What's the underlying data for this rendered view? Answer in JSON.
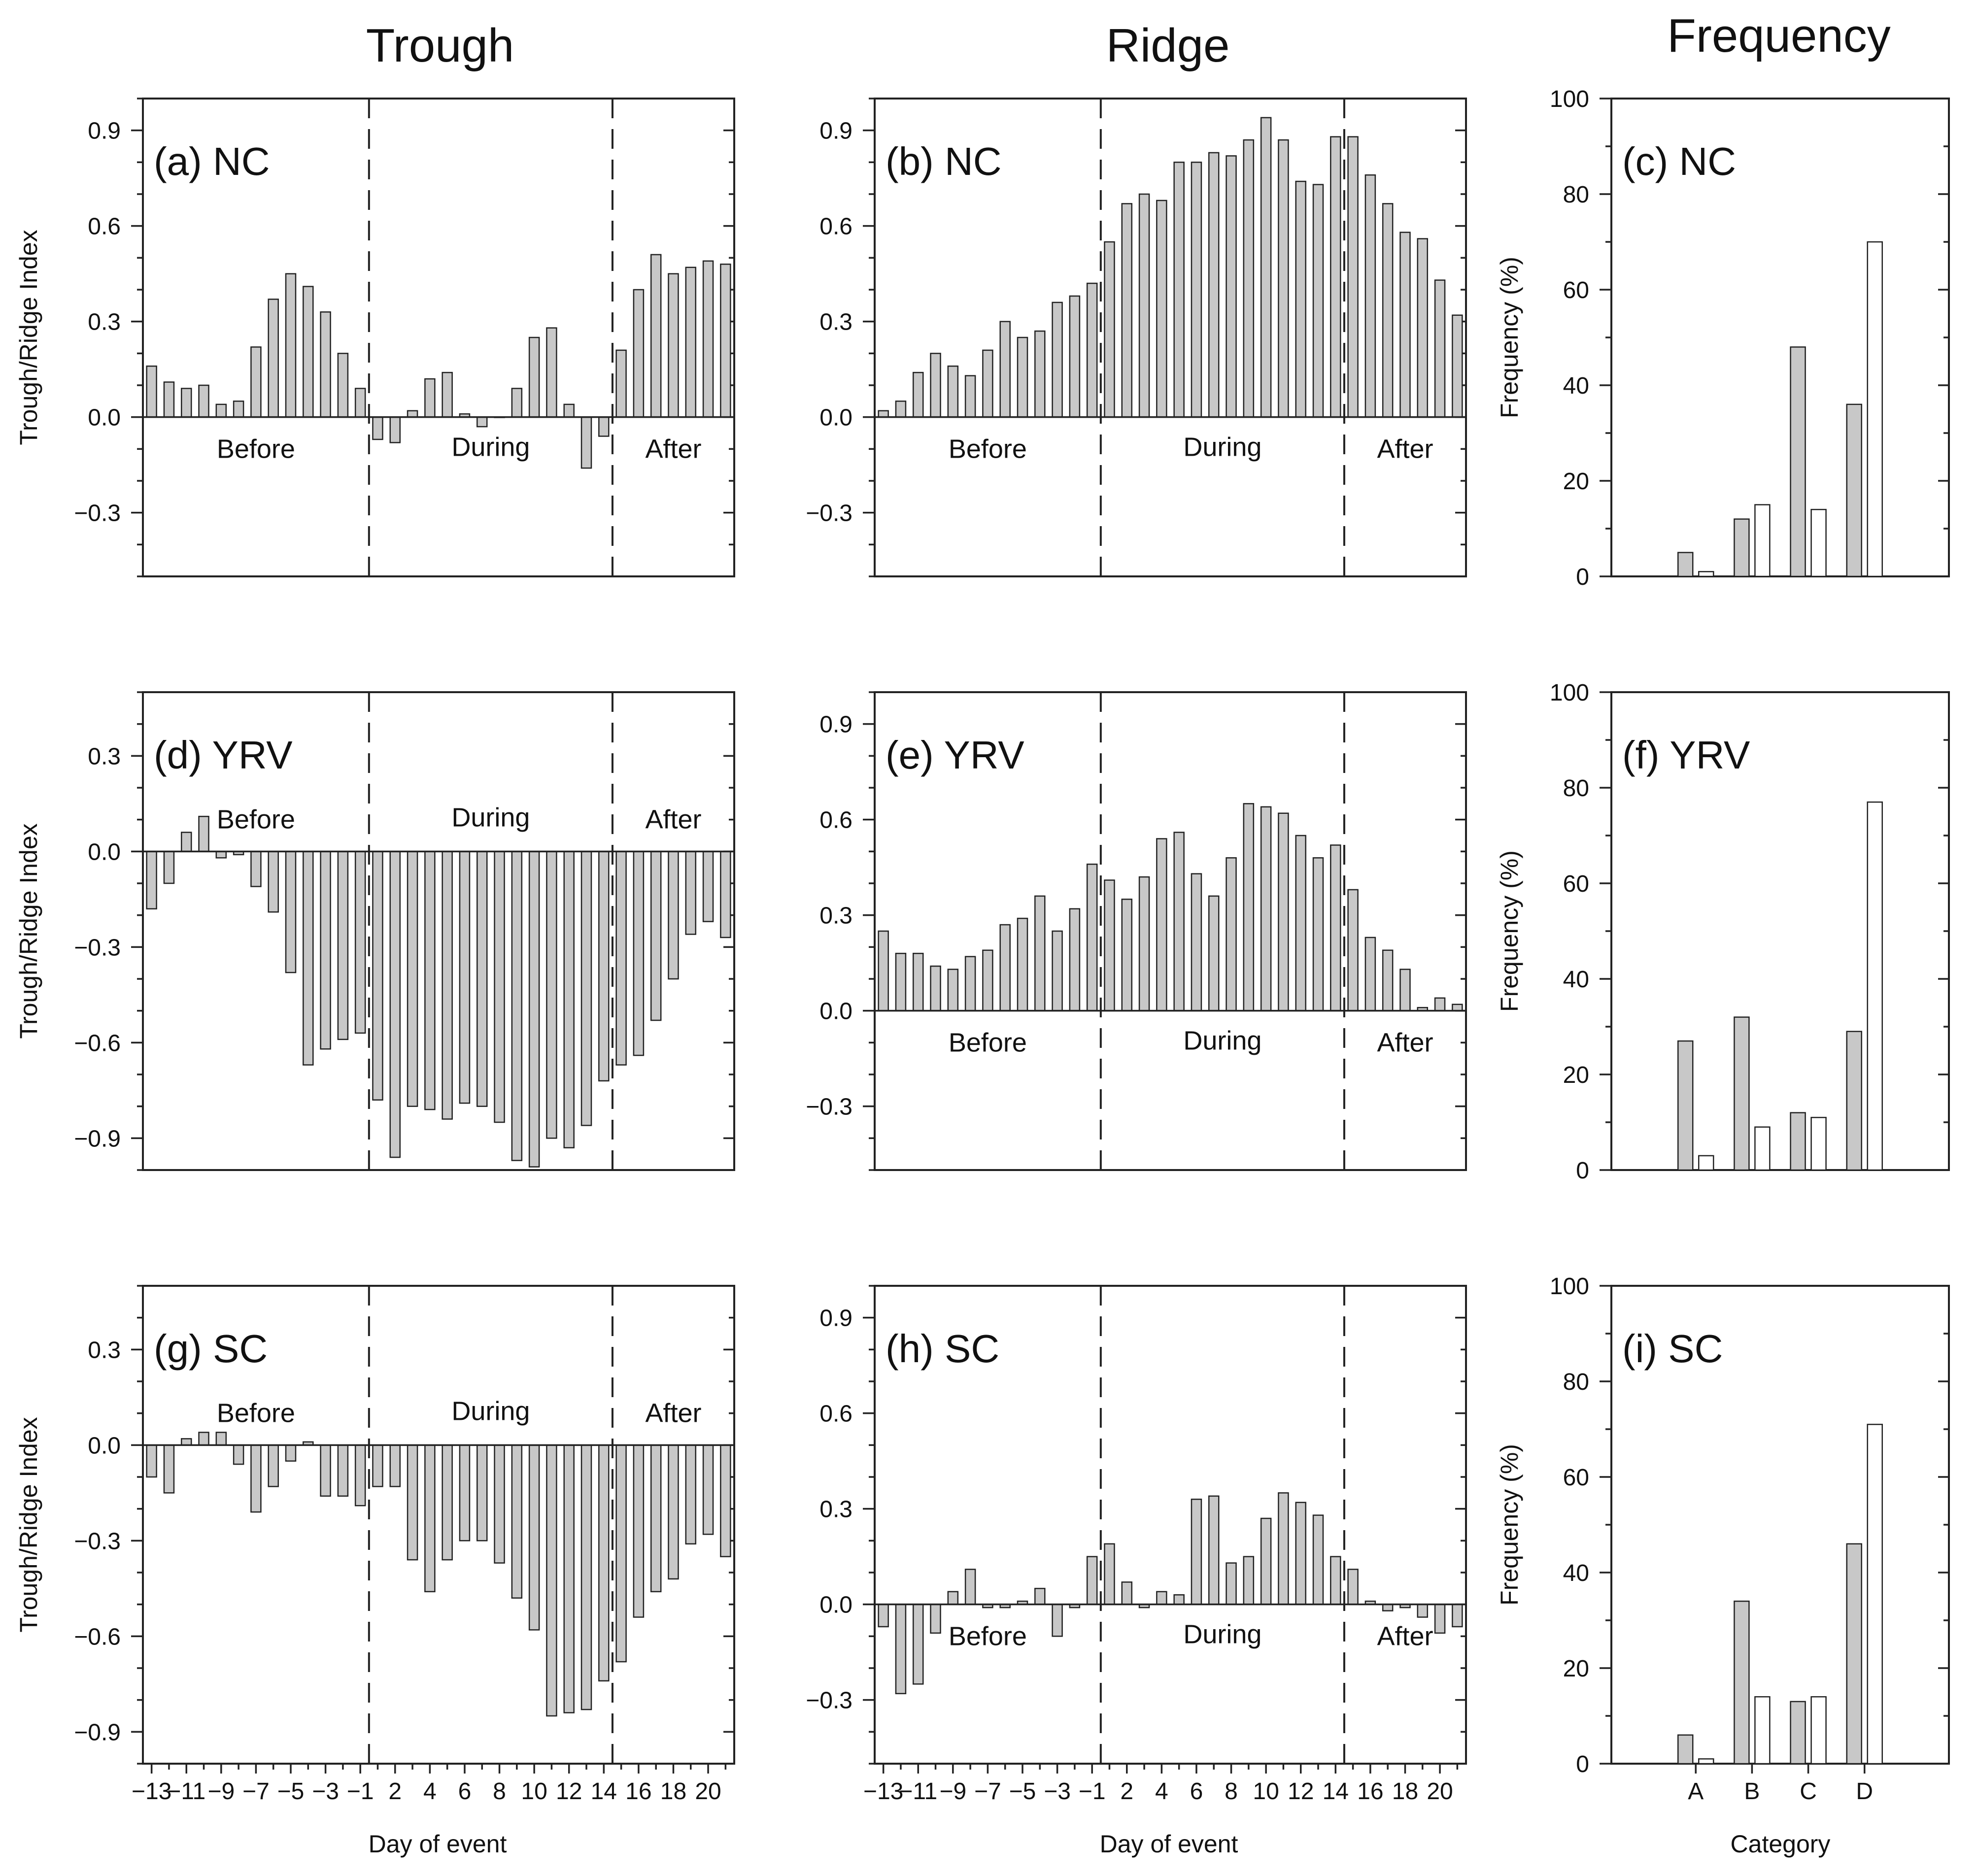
{
  "column_titles": [
    "Trough",
    "Ridge",
    "Frequency"
  ],
  "y_axis_label_index": "Trough/Ridge Index",
  "y_axis_label_freq": "Frequency (%)",
  "x_axis_label_day": "Day of event",
  "x_axis_label_cat": "Category",
  "phase_labels": [
    "Before",
    "During",
    "After"
  ],
  "chart_data": [
    {
      "id": "a",
      "type": "bar",
      "title": "(a) NC",
      "ylabel": "Trough/Ridge Index",
      "xlabel": "Day of event",
      "ylim": [
        -0.5,
        1.0
      ],
      "yticks": [
        -0.3,
        0.0,
        0.3,
        0.6,
        0.9
      ],
      "x": [
        -13,
        -12,
        -11,
        -10,
        -9,
        -8,
        -7,
        -6,
        -5,
        -4,
        -3,
        -2,
        -1,
        1,
        2,
        3,
        4,
        5,
        6,
        7,
        8,
        9,
        10,
        11,
        12,
        13,
        14,
        15,
        16,
        17,
        18,
        19,
        20,
        21
      ],
      "values": [
        0.16,
        0.11,
        0.09,
        0.1,
        0.04,
        0.05,
        0.22,
        0.37,
        0.45,
        0.41,
        0.33,
        0.2,
        0.09,
        -0.07,
        -0.08,
        0.02,
        0.12,
        0.14,
        0.01,
        -0.03,
        0.0,
        0.09,
        0.25,
        0.28,
        0.04,
        -0.16,
        -0.06,
        0.21,
        0.4,
        0.51,
        0.45,
        0.47,
        0.49,
        0.48
      ],
      "phase_text_y": -0.1
    },
    {
      "id": "b",
      "type": "bar",
      "title": "(b) NC",
      "ylabel": "",
      "xlabel": "Day of event",
      "ylim": [
        -0.5,
        1.0
      ],
      "yticks": [
        -0.3,
        0.0,
        0.3,
        0.6,
        0.9
      ],
      "x": [
        -13,
        -12,
        -11,
        -10,
        -9,
        -8,
        -7,
        -6,
        -5,
        -4,
        -3,
        -2,
        -1,
        1,
        2,
        3,
        4,
        5,
        6,
        7,
        8,
        9,
        10,
        11,
        12,
        13,
        14,
        15,
        16,
        17,
        18,
        19,
        20,
        21
      ],
      "values": [
        0.02,
        0.05,
        0.14,
        0.2,
        0.16,
        0.13,
        0.21,
        0.3,
        0.25,
        0.27,
        0.36,
        0.38,
        0.42,
        0.55,
        0.67,
        0.7,
        0.68,
        0.8,
        0.8,
        0.83,
        0.82,
        0.87,
        0.94,
        0.87,
        0.74,
        0.73,
        0.88,
        0.88,
        0.76,
        0.67,
        0.58,
        0.56,
        0.43,
        0.32
      ],
      "phase_text_y": -0.1
    },
    {
      "id": "c",
      "type": "bar",
      "title": "(c) NC",
      "ylabel": "Frequency (%)",
      "xlabel": "Category",
      "ylim": [
        0,
        100
      ],
      "yticks": [
        0,
        20,
        40,
        60,
        80,
        100
      ],
      "categories": [
        "A",
        "B",
        "C",
        "D"
      ],
      "series": [
        {
          "name": "gray",
          "values": [
            5,
            12,
            48,
            36
          ]
        },
        {
          "name": "white",
          "values": [
            1,
            15,
            14,
            70
          ]
        }
      ]
    },
    {
      "id": "d",
      "type": "bar",
      "title": "(d) YRV",
      "ylabel": "Trough/Ridge Index",
      "xlabel": "Day of event",
      "ylim": [
        -1.0,
        0.5
      ],
      "yticks": [
        -0.9,
        -0.6,
        -0.3,
        0.0,
        0.3
      ],
      "x": [
        -13,
        -12,
        -11,
        -10,
        -9,
        -8,
        -7,
        -6,
        -5,
        -4,
        -3,
        -2,
        -1,
        1,
        2,
        3,
        4,
        5,
        6,
        7,
        8,
        9,
        10,
        11,
        12,
        13,
        14,
        15,
        16,
        17,
        18,
        19,
        20,
        21
      ],
      "values": [
        -0.18,
        -0.1,
        0.06,
        0.11,
        -0.02,
        -0.01,
        -0.11,
        -0.19,
        -0.38,
        -0.67,
        -0.62,
        -0.59,
        -0.57,
        -0.78,
        -0.96,
        -0.8,
        -0.81,
        -0.84,
        -0.79,
        -0.8,
        -0.85,
        -0.97,
        -0.99,
        -0.9,
        -0.93,
        -0.86,
        -0.72,
        -0.67,
        -0.64,
        -0.53,
        -0.4,
        -0.26,
        -0.22,
        -0.27
      ],
      "phase_text_y": 0.1
    },
    {
      "id": "e",
      "type": "bar",
      "title": "(e) YRV",
      "ylabel": "",
      "xlabel": "Day of event",
      "ylim": [
        -0.5,
        1.0
      ],
      "yticks": [
        -0.3,
        0.0,
        0.3,
        0.6,
        0.9
      ],
      "x": [
        -13,
        -12,
        -11,
        -10,
        -9,
        -8,
        -7,
        -6,
        -5,
        -4,
        -3,
        -2,
        -1,
        1,
        2,
        3,
        4,
        5,
        6,
        7,
        8,
        9,
        10,
        11,
        12,
        13,
        14,
        15,
        16,
        17,
        18,
        19,
        20,
        21
      ],
      "values": [
        0.25,
        0.18,
        0.18,
        0.14,
        0.13,
        0.17,
        0.19,
        0.27,
        0.29,
        0.36,
        0.25,
        0.32,
        0.46,
        0.41,
        0.35,
        0.42,
        0.54,
        0.56,
        0.43,
        0.36,
        0.48,
        0.65,
        0.64,
        0.62,
        0.55,
        0.48,
        0.52,
        0.38,
        0.23,
        0.19,
        0.13,
        0.01,
        0.04,
        0.02
      ],
      "phase_text_y": -0.1
    },
    {
      "id": "f",
      "type": "bar",
      "title": "(f) YRV",
      "ylabel": "Frequency (%)",
      "xlabel": "Category",
      "ylim": [
        0,
        100
      ],
      "yticks": [
        0,
        20,
        40,
        60,
        80,
        100
      ],
      "categories": [
        "A",
        "B",
        "C",
        "D"
      ],
      "series": [
        {
          "name": "gray",
          "values": [
            27,
            32,
            12,
            29
          ]
        },
        {
          "name": "white",
          "values": [
            3,
            9,
            11,
            77
          ]
        }
      ]
    },
    {
      "id": "g",
      "type": "bar",
      "title": "(g) SC",
      "ylabel": "Trough/Ridge Index",
      "xlabel": "Day of event",
      "ylim": [
        -1.0,
        0.5
      ],
      "yticks": [
        -0.9,
        -0.6,
        -0.3,
        0.0,
        0.3
      ],
      "x": [
        -13,
        -12,
        -11,
        -10,
        -9,
        -8,
        -7,
        -6,
        -5,
        -4,
        -3,
        -2,
        -1,
        1,
        2,
        3,
        4,
        5,
        6,
        7,
        8,
        9,
        10,
        11,
        12,
        13,
        14,
        15,
        16,
        17,
        18,
        19,
        20,
        21
      ],
      "values": [
        -0.1,
        -0.15,
        0.02,
        0.04,
        0.04,
        -0.06,
        -0.21,
        -0.13,
        -0.05,
        0.01,
        -0.16,
        -0.16,
        -0.19,
        -0.13,
        -0.13,
        -0.36,
        -0.46,
        -0.36,
        -0.3,
        -0.3,
        -0.37,
        -0.48,
        -0.58,
        -0.85,
        -0.84,
        -0.83,
        -0.74,
        -0.68,
        -0.54,
        -0.46,
        -0.42,
        -0.31,
        -0.28,
        -0.35
      ],
      "phase_text_y": 0.1
    },
    {
      "id": "h",
      "type": "bar",
      "title": "(h) SC",
      "ylabel": "",
      "xlabel": "Day of event",
      "ylim": [
        -0.5,
        1.0
      ],
      "yticks": [
        -0.3,
        0.0,
        0.3,
        0.6,
        0.9
      ],
      "x": [
        -13,
        -12,
        -11,
        -10,
        -9,
        -8,
        -7,
        -6,
        -5,
        -4,
        -3,
        -2,
        -1,
        1,
        2,
        3,
        4,
        5,
        6,
        7,
        8,
        9,
        10,
        11,
        12,
        13,
        14,
        15,
        16,
        17,
        18,
        19,
        20,
        21
      ],
      "values": [
        -0.07,
        -0.28,
        -0.25,
        -0.09,
        0.04,
        0.11,
        -0.01,
        -0.01,
        0.01,
        0.05,
        -0.1,
        -0.01,
        0.15,
        0.19,
        0.07,
        -0.01,
        0.04,
        0.03,
        0.33,
        0.34,
        0.13,
        0.15,
        0.27,
        0.35,
        0.32,
        0.28,
        0.15,
        0.11,
        0.01,
        -0.02,
        -0.01,
        -0.04,
        -0.09,
        -0.07
      ],
      "phase_text_y": -0.1
    },
    {
      "id": "i",
      "type": "bar",
      "title": "(i) SC",
      "ylabel": "Frequency (%)",
      "xlabel": "Category",
      "ylim": [
        0,
        100
      ],
      "yticks": [
        0,
        20,
        40,
        60,
        80,
        100
      ],
      "categories": [
        "A",
        "B",
        "C",
        "D"
      ],
      "series": [
        {
          "name": "gray",
          "values": [
            6,
            34,
            13,
            46
          ]
        },
        {
          "name": "white",
          "values": [
            1,
            14,
            14,
            71
          ]
        }
      ]
    }
  ]
}
